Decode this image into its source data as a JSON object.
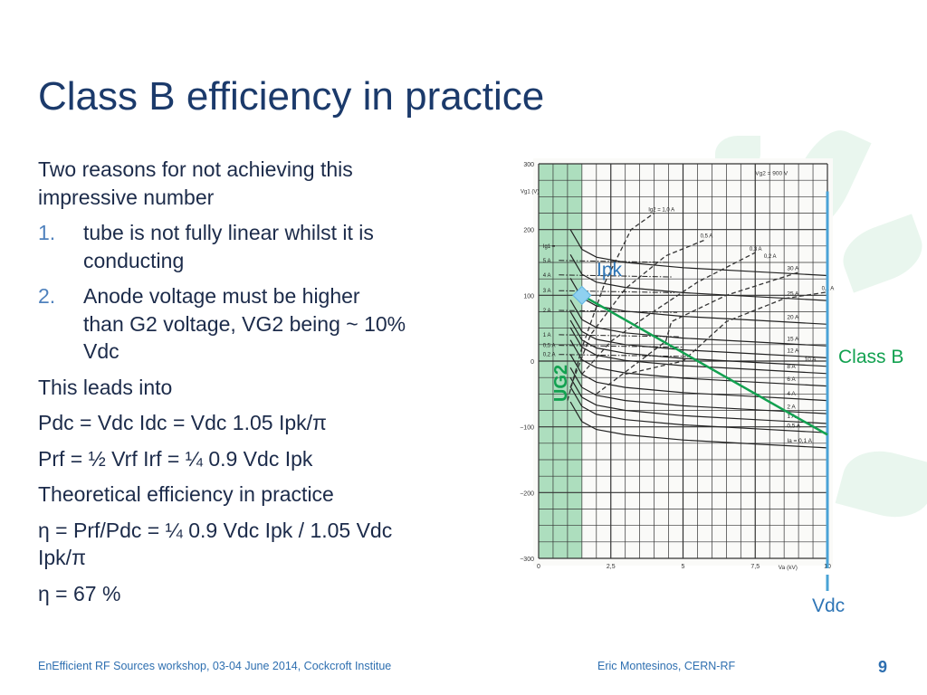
{
  "slide": {
    "title": "Class B efficiency in practice",
    "paragraphs": [
      {
        "lines": [
          "Two reasons for not achieving this",
          "impressive number"
        ]
      },
      {
        "marker": "1.",
        "lines": [
          "tube is not fully linear whilst it is",
          "conducting"
        ]
      },
      {
        "marker": "2.",
        "lines": [
          "Anode voltage must be higher",
          "than G2 voltage, VG2 being ~ 10%",
          "Vdc"
        ]
      },
      {
        "lines": [
          "This leads into"
        ]
      },
      {
        "lines": [
          "Pdc = Vdc Idc = Vdc 1.05 Ipk/π"
        ]
      },
      {
        "lines": [
          "Prf = ½ Vrf Irf = ¼ 0.9 Vdc Ipk"
        ]
      },
      {
        "lines": [
          "Theoretical efficiency in practice"
        ]
      },
      {
        "lines": [
          "η = Prf/Pdc = ¼ 0.9 Vdc Ipk / 1.05 Vdc",
          "Ipk/π"
        ]
      },
      {
        "lines": [
          "η = 67 %"
        ]
      }
    ],
    "footer": {
      "left": "EnEfficient RF Sources workshop, 03-04 June 2014, Cockcroft Institue",
      "middle": "Eric Montesinos, CERN-RF",
      "page": "9"
    }
  },
  "annotations": {
    "ipk": "Ipk",
    "class_b": "Class B",
    "vdc": "Vdc",
    "ug2": "UG2"
  },
  "colors": {
    "title": "#1b3a6b",
    "accent_blue": "#2e75b6",
    "load_line_green": "#12a150",
    "vdc_line_blue": "#4aa3d6",
    "ug2_region": "#9fd8b4",
    "ipk_marker": "#8fd0f0"
  },
  "chart_data": {
    "type": "line",
    "xlabel": "Va (kV)",
    "ylabel": "Vg1 (V)",
    "xlim": [
      0,
      10
    ],
    "ylim": [
      -300,
      300
    ],
    "x_ticks": [
      "0",
      "2,5",
      "5",
      "7,5",
      "10"
    ],
    "y_ticks": [
      "300",
      "200",
      "100",
      "0",
      "−100",
      "−200",
      "−300"
    ],
    "y_tick_values": [
      300,
      200,
      100,
      0,
      -100,
      -200,
      -300
    ],
    "x_tick_values": [
      0,
      2.5,
      5,
      7.5,
      10
    ],
    "grid": true,
    "condition": "Vg2 = 900 V",
    "anode_current_curves": [
      {
        "name": "30 A",
        "end": 130
      },
      {
        "name": "25 A",
        "end": 92
      },
      {
        "name": "20 A",
        "end": 56
      },
      {
        "name": "15 A",
        "end": 23
      },
      {
        "name": "12 A",
        "end": 5
      },
      {
        "name": "10 A",
        "end": -8
      },
      {
        "name": "8 A",
        "end": -19
      },
      {
        "name": "6 A",
        "end": -38
      },
      {
        "name": "4 A",
        "end": -60
      },
      {
        "name": "2 A",
        "end": -80
      },
      {
        "name": "1 A",
        "end": -95
      },
      {
        "name": "0,5 A",
        "end": -109
      },
      {
        "name": "Ia = 0,1 A",
        "end": -132
      }
    ],
    "grid_current_label": "Ig1 =",
    "grid_current_curves": [
      {
        "name": "5 A",
        "vg1": 153
      },
      {
        "name": "4 A",
        "vg1": 131
      },
      {
        "name": "3 A",
        "vg1": 107
      },
      {
        "name": "2 A",
        "vg1": 77
      },
      {
        "name": "1 A",
        "vg1": 40
      },
      {
        "name": "0,5 A",
        "vg1": 24
      },
      {
        "name": "0,2 A",
        "vg1": 10
      }
    ],
    "screen_current_curves": [
      {
        "name": "Ig2 = 1,0 A",
        "points": [
          [
            1.0,
            -60
          ],
          [
            1.5,
            20
          ],
          [
            2.3,
            120
          ],
          [
            3.2,
            200
          ],
          [
            4.0,
            225
          ]
        ]
      },
      {
        "name": "0,5 A",
        "points": [
          [
            1.1,
            -40
          ],
          [
            1.8,
            40
          ],
          [
            3.0,
            110
          ],
          [
            4.4,
            160
          ],
          [
            5.8,
            185
          ]
        ]
      },
      {
        "name": "0,3 A",
        "points": [
          [
            1.5,
            -20
          ],
          [
            2.5,
            30
          ],
          [
            3.8,
            70
          ],
          [
            5.5,
            120
          ],
          [
            7.5,
            165
          ]
        ]
      },
      {
        "name": "0,2 A",
        "points": [
          [
            2.0,
            -50
          ],
          [
            4.4,
            30
          ],
          [
            4.6,
            60
          ],
          [
            6.5,
            100
          ],
          [
            9.0,
            135
          ]
        ]
      },
      {
        "name": "0,1 A",
        "points": [
          [
            3.0,
            -20
          ],
          [
            5.0,
            0
          ],
          [
            6.5,
            60
          ],
          [
            8.5,
            95
          ],
          [
            10,
            105
          ]
        ]
      }
    ],
    "ug2_region_kv": [
      0,
      1.5
    ],
    "ipk_point": [
      1.5,
      100
    ],
    "load_line": [
      [
        1.5,
        100
      ],
      [
        10,
        -112
      ]
    ],
    "vdc_kv": 10
  }
}
